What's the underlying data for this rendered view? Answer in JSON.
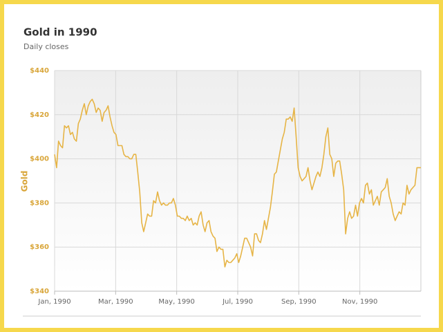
{
  "chart_data": {
    "type": "line",
    "title": "Gold in 1990",
    "subtitle": "Daily closes",
    "ylabel": "Gold",
    "color": "#e6b445",
    "grid": true,
    "xlim": [
      0,
      12
    ],
    "xticks": [
      {
        "value": 0,
        "label": "Jan, 1990"
      },
      {
        "value": 2,
        "label": "Mar, 1990"
      },
      {
        "value": 4,
        "label": "May, 1990"
      },
      {
        "value": 6,
        "label": "Jul, 1990"
      },
      {
        "value": 8,
        "label": "Sep, 1990"
      },
      {
        "value": 10,
        "label": "Nov, 1990"
      }
    ],
    "ylim": [
      340,
      440
    ],
    "yticks": [
      {
        "value": 340,
        "label": "$340"
      },
      {
        "value": 360,
        "label": "$360"
      },
      {
        "value": 380,
        "label": "$380"
      },
      {
        "value": 400,
        "label": "$400"
      },
      {
        "value": 420,
        "label": "$420"
      },
      {
        "value": 440,
        "label": "$440"
      }
    ],
    "values": [
      402,
      396,
      408,
      406,
      405,
      415,
      414,
      415,
      411,
      412,
      409,
      408,
      416,
      418,
      422,
      425,
      420,
      424,
      426,
      427,
      425,
      421,
      423,
      422,
      417,
      421,
      422,
      424,
      419,
      415,
      412,
      411,
      406,
      406,
      406,
      402,
      401,
      401,
      400,
      400,
      402,
      402,
      394,
      385,
      371,
      367,
      371,
      375,
      374,
      374,
      381,
      380,
      385,
      381,
      379,
      380,
      379,
      379,
      380,
      380,
      382,
      379,
      374,
      374,
      373,
      373,
      372,
      374,
      372,
      373,
      370,
      371,
      370,
      374,
      376,
      370,
      367,
      371,
      372,
      367,
      365,
      364,
      358,
      360,
      359,
      359,
      351,
      354,
      353,
      353,
      354,
      355,
      357,
      353,
      356,
      360,
      364,
      364,
      362,
      360,
      356,
      366,
      366,
      363,
      362,
      366,
      372,
      368,
      373,
      378,
      385,
      393,
      394,
      399,
      404,
      409,
      412,
      418,
      418,
      419,
      417,
      423,
      410,
      396,
      392,
      390,
      391,
      392,
      396,
      390,
      386,
      389,
      392,
      394,
      392,
      396,
      402,
      410,
      414,
      402,
      400,
      392,
      398,
      399,
      399,
      393,
      386,
      366,
      373,
      376,
      373,
      374,
      379,
      374,
      380,
      382,
      380,
      388,
      389,
      384,
      386,
      379,
      381,
      383,
      379,
      385,
      386,
      387,
      391,
      383,
      380,
      375,
      372,
      374,
      376,
      375,
      380,
      379,
      388,
      384,
      386,
      387,
      388,
      396,
      396,
      396
    ]
  }
}
